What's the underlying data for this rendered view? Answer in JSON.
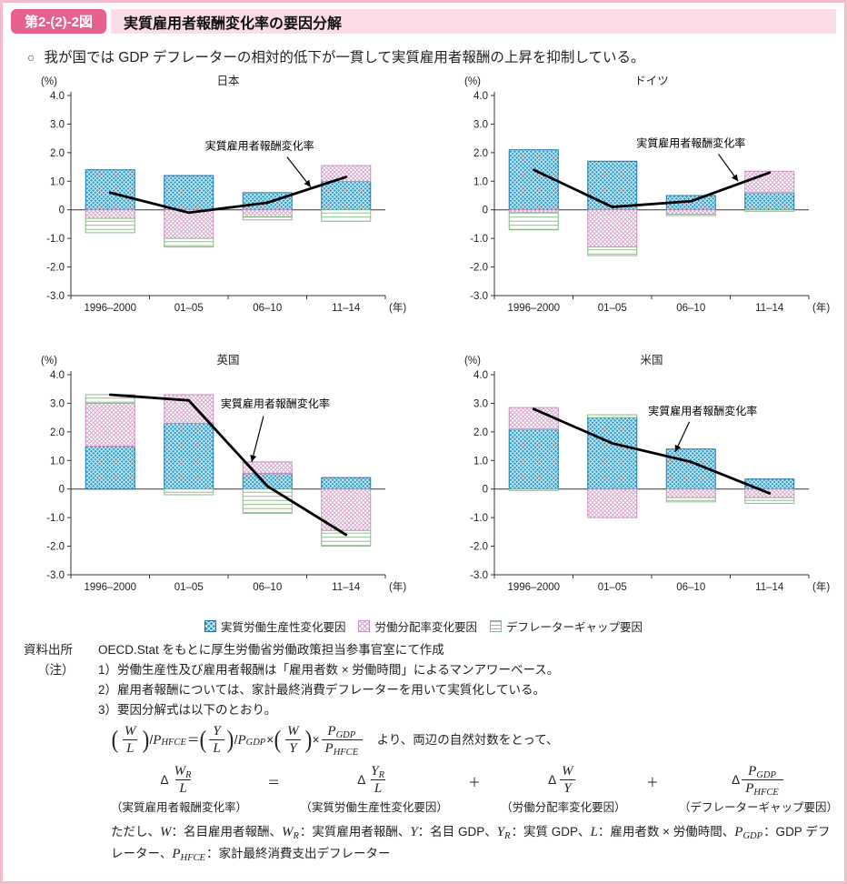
{
  "page": {
    "figure_label": "第2-(2)-2図",
    "figure_title": "実質雇用者報酬変化率の要因分解",
    "bullet_marker": "○",
    "bullet_text": "我が国では GDP デフレーターの相対的低下が一貫して実質雇用者報酬の上昇を抑制している。"
  },
  "colors": {
    "accent_pink": "#e8618c",
    "band_pink": "#fbdde7",
    "border_pink": "#f3bcca",
    "bar_blue_fill": "#2f9dc8",
    "bar_blue_stroke": "#1a7ba8",
    "bar_pink_hatch": "#d6a3ca",
    "bar_pink_stroke": "#c791bd",
    "bar_green_hatch": "#8fbf8f",
    "bar_green_stroke": "#8ab88a",
    "line_color": "#000000",
    "axis_color": "#333333"
  },
  "chart_data": {
    "type": "bar",
    "categories": [
      "1996–2000",
      "01–05",
      "06–10",
      "11–14"
    ],
    "x_unit_label": "(年)",
    "y_axis_label": "(%)",
    "ylim": [
      -3.0,
      4.0
    ],
    "ytick_labels": [
      "4.0",
      "3.0",
      "2.0",
      "1.0",
      "0",
      "-1.0",
      "-2.0",
      "-3.0"
    ],
    "line_label": "実質雇用者報酬変化率",
    "series_names": [
      "実質労働生産性変化要因",
      "労働分配率変化要因",
      "デフレーターギャップ要因"
    ],
    "legend_position": "bottom",
    "grid": false,
    "panels": [
      {
        "title": "日本",
        "productivity": [
          1.4,
          1.2,
          0.6,
          1.0
        ],
        "labor_share": [
          -0.3,
          -1.0,
          -0.25,
          0.55
        ],
        "deflator_gap": [
          -0.5,
          -0.3,
          -0.1,
          -0.4
        ],
        "line": [
          0.6,
          -0.1,
          0.25,
          1.15
        ],
        "annotation": {
          "text_x": 1.9,
          "text_y": 2.1,
          "ax": 2.25,
          "ay": 1.85,
          "bx": 2.55,
          "by": 0.8
        }
      },
      {
        "title": "ドイツ",
        "productivity": [
          2.1,
          1.7,
          0.5,
          0.6
        ],
        "labor_share": [
          -0.1,
          -1.3,
          -0.15,
          0.75
        ],
        "deflator_gap": [
          -0.6,
          -0.3,
          -0.05,
          -0.05
        ],
        "line": [
          1.4,
          0.1,
          0.3,
          1.3
        ],
        "annotation": {
          "text_x": 2.0,
          "text_y": 2.2,
          "ax": 2.35,
          "ay": 1.95,
          "bx": 2.6,
          "by": 1.0
        }
      },
      {
        "title": "英国",
        "productivity": [
          1.5,
          2.3,
          0.55,
          0.4
        ],
        "labor_share": [
          1.5,
          1.0,
          0.4,
          -1.45
        ],
        "deflator_gap": [
          0.3,
          -0.2,
          -0.85,
          -0.55
        ],
        "line": [
          3.3,
          3.1,
          0.1,
          -1.6
        ],
        "annotation": {
          "text_x": 2.1,
          "text_y": 2.85,
          "ax": 1.95,
          "ay": 2.55,
          "bx": 1.8,
          "by": 0.95
        }
      },
      {
        "title": "米国",
        "productivity": [
          2.1,
          2.5,
          1.4,
          0.35
        ],
        "labor_share": [
          0.75,
          -1.0,
          -0.3,
          -0.3
        ],
        "deflator_gap": [
          -0.05,
          0.1,
          -0.15,
          -0.2
        ],
        "line": [
          2.8,
          1.6,
          0.95,
          -0.15
        ],
        "annotation": {
          "text_x": 2.15,
          "text_y": 2.6,
          "ax": 1.98,
          "ay": 2.35,
          "bx": 1.8,
          "by": 1.3
        }
      }
    ]
  },
  "legend": {
    "items": [
      {
        "label": "実質労働生産性変化要因",
        "pattern": "blue-crosshatch"
      },
      {
        "label": "労働分配率変化要因",
        "pattern": "pink-crosshatch"
      },
      {
        "label": "デフレーターギャップ要因",
        "pattern": "green-lines"
      }
    ]
  },
  "notes": {
    "source_label": "資料出所",
    "source_text": "OECD.Stat をもとに厚生労働省労働政策担当参事官室にて作成",
    "note_label": "（注）",
    "items": [
      "1）労働生産性及び雇用者報酬は「雇用者数 × 労働時間」によるマンアワーベース。",
      "2）雇用者報酬については、家計最終消費デフレーターを用いて実質化している。",
      "3）要因分解式は以下のとおり。"
    ],
    "formulas": {
      "line1": [
        {
          "p": [
            {
              "f": {
                "n": [
                  {
                    "v": "W"
                  }
                ],
                "d": [
                  {
                    "v": "L"
                  }
                ]
              }
            }
          ]
        },
        "/",
        {
          "v": "P"
        },
        {
          "s": "HFCE"
        },
        " ＝ ",
        {
          "p": [
            {
              "f": {
                "n": [
                  {
                    "v": "Y"
                  }
                ],
                "d": [
                  {
                    "v": "L"
                  }
                ]
              }
            }
          ]
        },
        "/",
        {
          "v": "P"
        },
        {
          "s": "GDP"
        },
        " × ",
        {
          "p": [
            {
              "f": {
                "n": [
                  {
                    "v": "W"
                  }
                ],
                "d": [
                  {
                    "v": "Y"
                  }
                ]
              }
            }
          ]
        },
        " × ",
        {
          "f": {
            "n": [
              {
                "v": "P"
              },
              {
                "s": "GDP"
              }
            ],
            "d": [
              {
                "v": "P"
              },
              {
                "s": "HFCE"
              }
            ]
          }
        },
        "　より、両辺の自然対数をとって、"
      ],
      "line2": {
        "terms": [
          {
            "math": [
              "Δ",
              {
                "f": {
                  "n": [
                    {
                      "v": "W"
                    },
                    {
                      "s": "R"
                    }
                  ],
                  "d": [
                    {
                      "v": "L"
                    }
                  ]
                }
              }
            ],
            "caption": "（実質雇用者報酬変化率）"
          },
          {
            "math": [
              "Δ",
              {
                "f": {
                  "n": [
                    {
                      "v": "Y"
                    },
                    {
                      "s": "R"
                    }
                  ],
                  "d": [
                    {
                      "v": "L"
                    }
                  ]
                }
              }
            ],
            "caption": "（実質労働生産性変化要因）"
          },
          {
            "math": [
              "Δ",
              {
                "f": {
                  "n": [
                    {
                      "v": "W"
                    }
                  ],
                  "d": [
                    {
                      "v": "Y"
                    }
                  ]
                }
              }
            ],
            "caption": "（労働分配率変化要因）"
          },
          {
            "math": [
              "Δ",
              {
                "f": {
                  "n": [
                    {
                      "v": "P"
                    },
                    {
                      "s": "GDP"
                    }
                  ],
                  "d": [
                    {
                      "v": "P"
                    },
                    {
                      "s": "HFCE"
                    }
                  ]
                }
              }
            ],
            "caption": "（デフレーターギャップ要因）"
          }
        ],
        "operators": [
          "＝",
          "＋",
          "＋"
        ]
      },
      "tadashi": [
        "ただし、",
        {
          "v": "W"
        },
        "：名目雇用者報酬、",
        {
          "v": "W"
        },
        {
          "s": "R"
        },
        "：実質雇用者報酬、",
        {
          "v": "Y"
        },
        "：名目 GDP、",
        {
          "v": "Y"
        },
        {
          "s": "R"
        },
        "：実質 GDP、",
        {
          "v": "L"
        },
        "：雇用者数 × 労働時間、",
        {
          "v": "P"
        },
        {
          "s": "GDP"
        },
        "：GDP デフレーター、",
        {
          "v": "P"
        },
        {
          "s": "HFCE"
        },
        "：家計最終消費支出デフレーター"
      ]
    }
  }
}
